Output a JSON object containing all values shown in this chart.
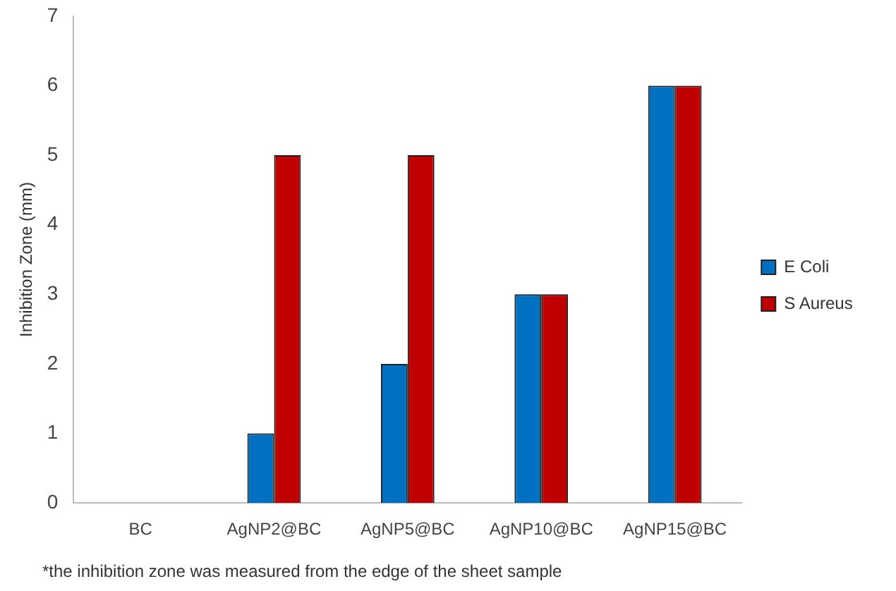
{
  "chart_data": {
    "type": "bar",
    "ylabel": "Inhibition Zone (mm)",
    "categories": [
      "BC",
      "AgNP2@BC",
      "AgNP5@BC",
      "AgNP10@BC",
      "AgNP15@BC"
    ],
    "series": [
      {
        "name": "E Coli",
        "color": "#0070c0",
        "values": [
          0,
          1,
          2,
          3,
          6
        ]
      },
      {
        "name": "S Aureus",
        "color": "#c00000",
        "values": [
          0,
          5,
          5,
          3,
          6
        ]
      }
    ],
    "ylim": [
      0,
      7
    ],
    "yticks": [
      0,
      1,
      2,
      3,
      4,
      5,
      6,
      7
    ],
    "grid": false,
    "legend": "right",
    "annotations": [
      "*the inhibition zone was measured from the edge of the sheet sample"
    ]
  }
}
